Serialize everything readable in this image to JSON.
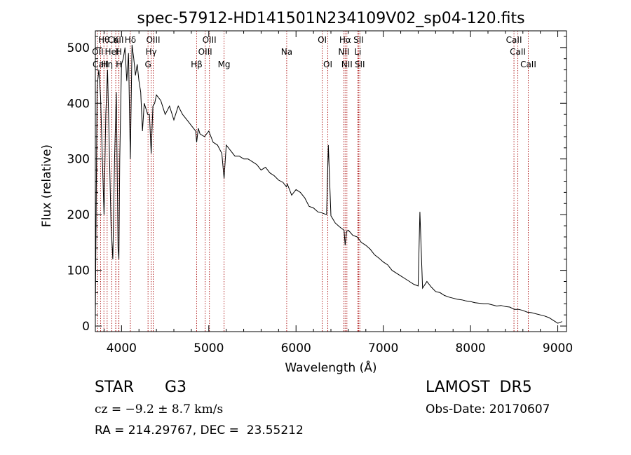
{
  "chart_data": {
    "type": "line",
    "title": "spec-57912-HD141501N234109V02_sp04-120.fits",
    "xlabel": "Wavelength (Å)",
    "ylabel": "Flux (relative)",
    "xlim": [
      3700,
      9100
    ],
    "ylim": [
      -10,
      530
    ],
    "xticks": [
      4000,
      5000,
      6000,
      7000,
      8000,
      9000
    ],
    "yticks": [
      0,
      100,
      200,
      300,
      400,
      500
    ],
    "grid": false,
    "line_color": "#000000",
    "marker_color": "#b22222",
    "series": [
      {
        "x": [
          3700,
          3720,
          3740,
          3760,
          3780,
          3800,
          3820,
          3840,
          3860,
          3880,
          3900,
          3920,
          3940,
          3960,
          3970,
          3980,
          4000,
          4020,
          4040,
          4060,
          4080,
          4101,
          4120,
          4140,
          4160,
          4180,
          4200,
          4220,
          4240,
          4260,
          4280,
          4300,
          4320,
          4340,
          4360,
          4380,
          4400,
          4450,
          4500,
          4550,
          4600,
          4650,
          4700,
          4750,
          4800,
          4850,
          4861,
          4880,
          4900,
          4950,
          5000,
          5050,
          5100,
          5150,
          5175,
          5200,
          5250,
          5300,
          5350,
          5400,
          5450,
          5500,
          5550,
          5600,
          5650,
          5700,
          5750,
          5800,
          5850,
          5890,
          5900,
          5950,
          6000,
          6050,
          6100,
          6150,
          6200,
          6250,
          6300,
          6350,
          6370,
          6400,
          6450,
          6500,
          6550,
          6563,
          6580,
          6600,
          6650,
          6700,
          6750,
          6800,
          6850,
          6900,
          6950,
          7000,
          7050,
          7100,
          7150,
          7200,
          7250,
          7300,
          7350,
          7400,
          7420,
          7450,
          7500,
          7550,
          7600,
          7650,
          7700,
          7750,
          7800,
          7850,
          7900,
          7950,
          8000,
          8050,
          8100,
          8150,
          8200,
          8250,
          8300,
          8350,
          8400,
          8450,
          8500,
          8550,
          8600,
          8650,
          8700,
          8750,
          8800,
          8850,
          8900,
          8950,
          9000,
          9050
        ],
        "y": [
          20,
          430,
          460,
          410,
          300,
          200,
          380,
          460,
          320,
          180,
          120,
          300,
          420,
          140,
          120,
          300,
          470,
          480,
          500,
          440,
          490,
          300,
          505,
          480,
          450,
          470,
          440,
          420,
          350,
          400,
          390,
          380,
          380,
          310,
          395,
          400,
          415,
          405,
          380,
          395,
          370,
          395,
          380,
          370,
          360,
          350,
          330,
          355,
          345,
          340,
          350,
          330,
          325,
          310,
          265,
          325,
          315,
          305,
          305,
          300,
          300,
          295,
          290,
          280,
          285,
          275,
          270,
          262,
          258,
          250,
          255,
          235,
          245,
          240,
          230,
          215,
          212,
          205,
          203,
          200,
          325,
          198,
          185,
          178,
          172,
          145,
          170,
          172,
          163,
          160,
          150,
          145,
          138,
          128,
          122,
          115,
          110,
          100,
          95,
          90,
          85,
          80,
          75,
          72,
          205,
          68,
          80,
          70,
          62,
          60,
          55,
          52,
          50,
          48,
          47,
          45,
          44,
          42,
          41,
          40,
          40,
          38,
          36,
          37,
          35,
          34,
          30,
          30,
          28,
          25,
          24,
          22,
          20,
          18,
          15,
          10,
          5,
          8
        ]
      }
    ],
    "line_markers": [
      {
        "label": "Hθ",
        "x": 3798,
        "row": 1
      },
      {
        "label": "CaII",
        "x": 3934,
        "row": 1
      },
      {
        "label": "K",
        "x": 3934,
        "row": 1
      },
      {
        "label": "Hδ",
        "x": 4101,
        "row": 1
      },
      {
        "label": "OIII",
        "x": 4363,
        "row": 1
      },
      {
        "label": "OIII",
        "x": 5007,
        "row": 1
      },
      {
        "label": "OI",
        "x": 6300,
        "row": 1
      },
      {
        "label": "Hα",
        "x": 6563,
        "row": 1
      },
      {
        "label": "SII",
        "x": 6717,
        "row": 1
      },
      {
        "label": "CaII",
        "x": 8498,
        "row": 1
      },
      {
        "label": "OII",
        "x": 3727,
        "row": 2
      },
      {
        "label": "HeI",
        "x": 3889,
        "row": 2
      },
      {
        "label": "H",
        "x": 3968,
        "row": 2
      },
      {
        "label": "Hγ",
        "x": 4340,
        "row": 2
      },
      {
        "label": "OIII",
        "x": 4959,
        "row": 2
      },
      {
        "label": "Na",
        "x": 5893,
        "row": 2
      },
      {
        "label": "NII",
        "x": 6548,
        "row": 2
      },
      {
        "label": "Li",
        "x": 6708,
        "row": 2
      },
      {
        "label": "CaII",
        "x": 8542,
        "row": 2
      },
      {
        "label": "CaII",
        "x": 3760,
        "row": 3
      },
      {
        "label": "Hη",
        "x": 3835,
        "row": 3
      },
      {
        "label": "H",
        "x": 3970,
        "row": 3
      },
      {
        "label": "G",
        "x": 4304,
        "row": 3
      },
      {
        "label": "Hβ",
        "x": 4861,
        "row": 3
      },
      {
        "label": "Mg",
        "x": 5175,
        "row": 3
      },
      {
        "label": "OI",
        "x": 6364,
        "row": 3
      },
      {
        "label": "NII",
        "x": 6583,
        "row": 3
      },
      {
        "label": "SII",
        "x": 6731,
        "row": 3
      },
      {
        "label": "CaII",
        "x": 8662,
        "row": 3
      }
    ]
  },
  "info": {
    "object_type": "STAR",
    "subclass": "G3",
    "survey": "LAMOST  DR5",
    "redshift": "cz = −9.2 ± 8.7 km/s",
    "obs_date": "Obs-Date: 20170607",
    "coords": "RA = 214.29767, DEC =  23.55212"
  }
}
